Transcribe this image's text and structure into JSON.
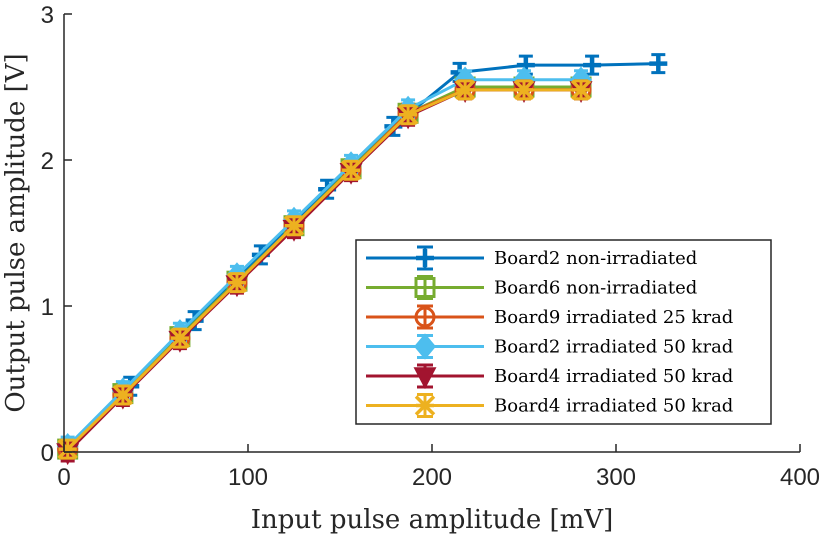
{
  "chart_data": {
    "type": "line",
    "title": "",
    "xlabel": "Input pulse amplitude [mV]",
    "ylabel": "Output pulse amplitude [V]",
    "xlim": [
      0,
      400
    ],
    "ylim": [
      0,
      3
    ],
    "xticks": [
      0,
      100,
      200,
      300,
      400
    ],
    "yticks": [
      0,
      1,
      2,
      3
    ],
    "xtick_labels": [
      "0",
      "100",
      "200",
      "300",
      "400"
    ],
    "ytick_labels": [
      "0",
      "1",
      "2",
      "3"
    ],
    "grid": false,
    "legend_position": "lower-right",
    "series": [
      {
        "name": "Board2 non-irradiated",
        "color": "#0072BD",
        "marker": "plus",
        "error_bars": true,
        "x": [
          2,
          36,
          71,
          107,
          143,
          179,
          215,
          251,
          287,
          323
        ],
        "y": [
          0.02,
          0.45,
          0.9,
          1.35,
          1.8,
          2.23,
          2.6,
          2.65,
          2.65,
          2.66
        ]
      },
      {
        "name": "Board6 non-irradiated",
        "color": "#77AC30",
        "marker": "square",
        "error_bars": true,
        "x": [
          2,
          32,
          63,
          94,
          125,
          156,
          187,
          218,
          250,
          281
        ],
        "y": [
          0.02,
          0.4,
          0.79,
          1.17,
          1.55,
          1.94,
          2.32,
          2.5,
          2.5,
          2.5
        ]
      },
      {
        "name": "Board9 irradiated 25 krad",
        "color": "#D95319",
        "marker": "circle",
        "error_bars": true,
        "x": [
          2,
          32,
          63,
          94,
          125,
          156,
          187,
          218,
          250,
          281
        ],
        "y": [
          0.02,
          0.39,
          0.78,
          1.16,
          1.55,
          1.93,
          2.32,
          2.48,
          2.48,
          2.48
        ]
      },
      {
        "name": "Board2 irradiated 50 krad",
        "color": "#4DBEEE",
        "marker": "diamond",
        "error_bars": true,
        "x": [
          2,
          32,
          63,
          94,
          125,
          156,
          187,
          218,
          250,
          281
        ],
        "y": [
          0.04,
          0.42,
          0.82,
          1.21,
          1.59,
          1.97,
          2.35,
          2.55,
          2.55,
          2.55
        ]
      },
      {
        "name": "Board4 irradiated 50 krad",
        "color": "#A2142F",
        "marker": "triangle-down",
        "error_bars": true,
        "x": [
          2,
          32,
          63,
          94,
          125,
          156,
          187,
          218,
          250,
          281
        ],
        "y": [
          0.0,
          0.38,
          0.77,
          1.15,
          1.53,
          1.92,
          2.3,
          2.48,
          2.48,
          2.48
        ]
      },
      {
        "name": "Board4 irradiated 50 krad",
        "color": "#EDB120",
        "marker": "star",
        "error_bars": true,
        "x": [
          2,
          32,
          63,
          94,
          125,
          156,
          187,
          218,
          250,
          281
        ],
        "y": [
          0.02,
          0.39,
          0.78,
          1.16,
          1.55,
          1.93,
          2.31,
          2.48,
          2.48,
          2.48
        ]
      }
    ]
  }
}
